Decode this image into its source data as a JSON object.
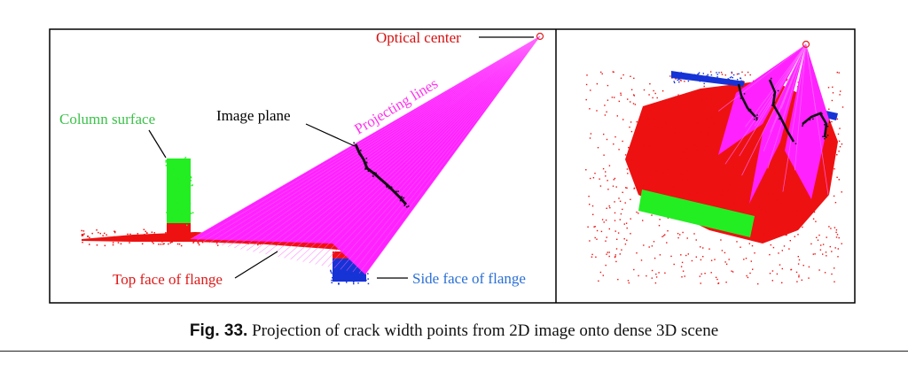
{
  "figure": {
    "number": "Fig. 33.",
    "caption": "Projection of crack width points from 2D image onto dense 3D scene"
  },
  "left_panel": {
    "labels": {
      "optical_center": "Optical center",
      "column_surface": "Column surface",
      "image_plane": "Image plane",
      "projecting_lines": "Projecting lines",
      "top_face": "Top face of flange",
      "side_face": "Side face of flange"
    }
  },
  "colors": {
    "frame": "#000000",
    "optical_center_label": "#d41010",
    "column_surface": "#22ee22",
    "column_label": "#3cc24a",
    "top_face": "#ee1111",
    "side_face": "#1633d6",
    "side_label": "#2a6fd6",
    "projecting_lines": "#ff22ff",
    "projecting_label": "#ff33ee",
    "crack_points": "#111111"
  }
}
